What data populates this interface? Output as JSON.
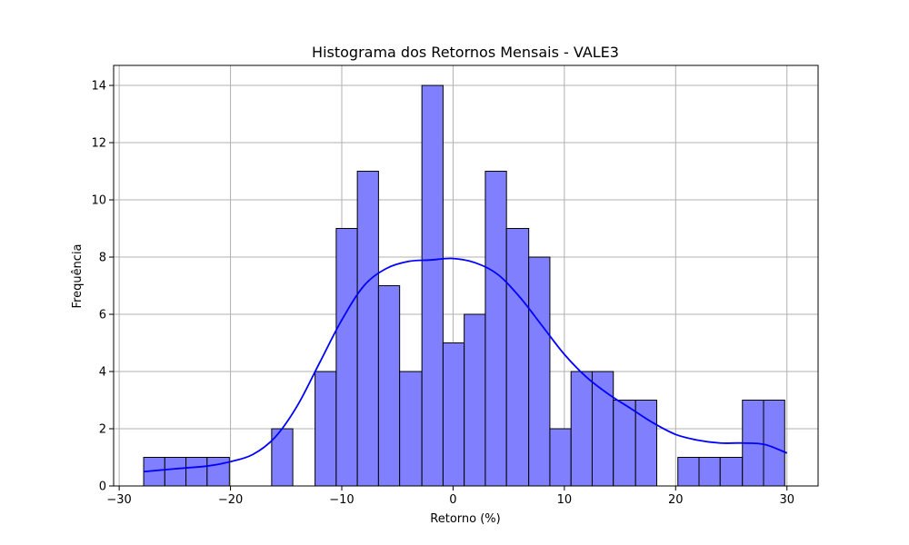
{
  "chart_data": {
    "type": "bar",
    "title": "Histograma dos Retornos Mensais - VALE3",
    "xlabel": "Retorno (%)",
    "ylabel": "Frequência",
    "xlim": [
      -30.5,
      32.8
    ],
    "ylim": [
      0,
      14.7
    ],
    "xticks": [
      -30,
      -20,
      -10,
      0,
      10,
      20,
      30
    ],
    "yticks": [
      0,
      2,
      4,
      6,
      8,
      10,
      12,
      14
    ],
    "grid": true,
    "bar_color": "#8080ff",
    "edge_color": "#000000",
    "kde_color": "#0000ff",
    "bins": [
      {
        "x0": -27.8,
        "x1": -25.9,
        "count": 1
      },
      {
        "x0": -25.9,
        "x1": -24.0,
        "count": 1
      },
      {
        "x0": -24.0,
        "x1": -22.1,
        "count": 1
      },
      {
        "x0": -22.1,
        "x1": -20.1,
        "count": 1
      },
      {
        "x0": -20.1,
        "x1": -18.2,
        "count": 0
      },
      {
        "x0": -18.2,
        "x1": -16.3,
        "count": 0
      },
      {
        "x0": -16.3,
        "x1": -14.4,
        "count": 2
      },
      {
        "x0": -14.4,
        "x1": -12.4,
        "count": 0
      },
      {
        "x0": -12.4,
        "x1": -10.5,
        "count": 4
      },
      {
        "x0": -10.5,
        "x1": -8.6,
        "count": 9
      },
      {
        "x0": -8.6,
        "x1": -6.7,
        "count": 11
      },
      {
        "x0": -6.7,
        "x1": -4.8,
        "count": 7
      },
      {
        "x0": -4.8,
        "x1": -2.8,
        "count": 4
      },
      {
        "x0": -2.8,
        "x1": -0.9,
        "count": 14
      },
      {
        "x0": -0.9,
        "x1": 1.0,
        "count": 5
      },
      {
        "x0": 1.0,
        "x1": 2.9,
        "count": 6
      },
      {
        "x0": 2.9,
        "x1": 4.8,
        "count": 11
      },
      {
        "x0": 4.8,
        "x1": 6.8,
        "count": 9
      },
      {
        "x0": 6.8,
        "x1": 8.7,
        "count": 8
      },
      {
        "x0": 8.7,
        "x1": 10.6,
        "count": 2
      },
      {
        "x0": 10.6,
        "x1": 12.5,
        "count": 4
      },
      {
        "x0": 12.5,
        "x1": 14.4,
        "count": 4
      },
      {
        "x0": 14.4,
        "x1": 16.4,
        "count": 3
      },
      {
        "x0": 16.4,
        "x1": 18.3,
        "count": 3
      },
      {
        "x0": 18.3,
        "x1": 20.2,
        "count": 0
      },
      {
        "x0": 20.2,
        "x1": 22.1,
        "count": 1
      },
      {
        "x0": 22.1,
        "x1": 24.0,
        "count": 1
      },
      {
        "x0": 24.0,
        "x1": 26.0,
        "count": 1
      },
      {
        "x0": 26.0,
        "x1": 27.9,
        "count": 3
      },
      {
        "x0": 27.9,
        "x1": 29.8,
        "count": 3
      }
    ],
    "kde": {
      "x": [
        -27.8,
        -25,
        -22,
        -20,
        -18,
        -16,
        -14,
        -12,
        -10,
        -8,
        -6,
        -4,
        -2,
        0,
        2,
        4,
        6,
        8,
        10,
        12,
        14,
        16,
        18,
        20,
        22,
        24,
        26,
        28,
        30
      ],
      "y": [
        0.5,
        0.6,
        0.7,
        0.85,
        1.1,
        1.7,
        2.8,
        4.3,
        5.8,
        7.0,
        7.6,
        7.85,
        7.9,
        7.95,
        7.8,
        7.4,
        6.6,
        5.6,
        4.6,
        3.8,
        3.2,
        2.7,
        2.2,
        1.8,
        1.6,
        1.5,
        1.5,
        1.45,
        1.15
      ]
    }
  }
}
